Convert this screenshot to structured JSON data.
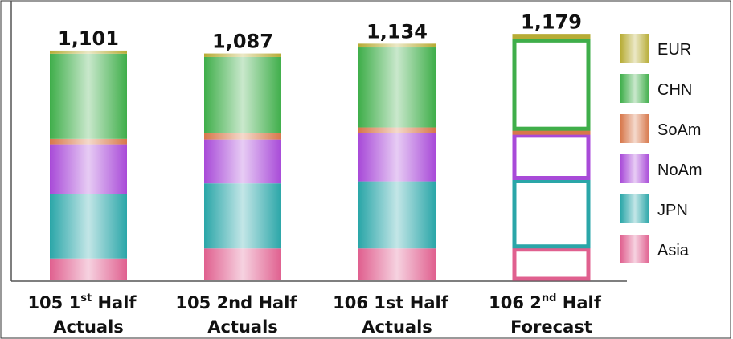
{
  "chart_data": {
    "type": "bar",
    "stacked": true,
    "title": "",
    "xlabel": "",
    "ylabel": "",
    "ylim": [
      0,
      1220
    ],
    "legend_position": "right",
    "categories": [
      {
        "main": "105 1",
        "sup": "st",
        "rest": " Half",
        "line2": "Actuals",
        "style": "solid"
      },
      {
        "main": "105 2nd Half",
        "sup": "",
        "rest": "",
        "line2": "Actuals",
        "style": "solid"
      },
      {
        "main": "106 1st Half",
        "sup": "",
        "rest": "",
        "line2": "Actuals",
        "style": "solid"
      },
      {
        "main": "106 2",
        "sup": "nd",
        "rest": " Half",
        "line2": "Forecast",
        "style": "outline"
      }
    ],
    "totals": [
      "1,101",
      "1,087",
      "1,134",
      "1,179"
    ],
    "series": [
      {
        "name": "Asia",
        "color": "#e0608f",
        "values": [
          105,
          153,
          153,
          155
        ]
      },
      {
        "name": "JPN",
        "color": "#2aa6a8",
        "values": [
          310,
          312,
          322,
          328
        ]
      },
      {
        "name": "NoAm",
        "color": "#a84ad8",
        "values": [
          237,
          210,
          232,
          218
        ]
      },
      {
        "name": "SoAm",
        "color": "#d7774a",
        "values": [
          26,
          32,
          26,
          18
        ]
      },
      {
        "name": "CHN",
        "color": "#3fae4a",
        "values": [
          408,
          363,
          383,
          438
        ]
      },
      {
        "name": "EUR",
        "color": "#b7ac35",
        "values": [
          15,
          17,
          18,
          22
        ]
      }
    ]
  }
}
